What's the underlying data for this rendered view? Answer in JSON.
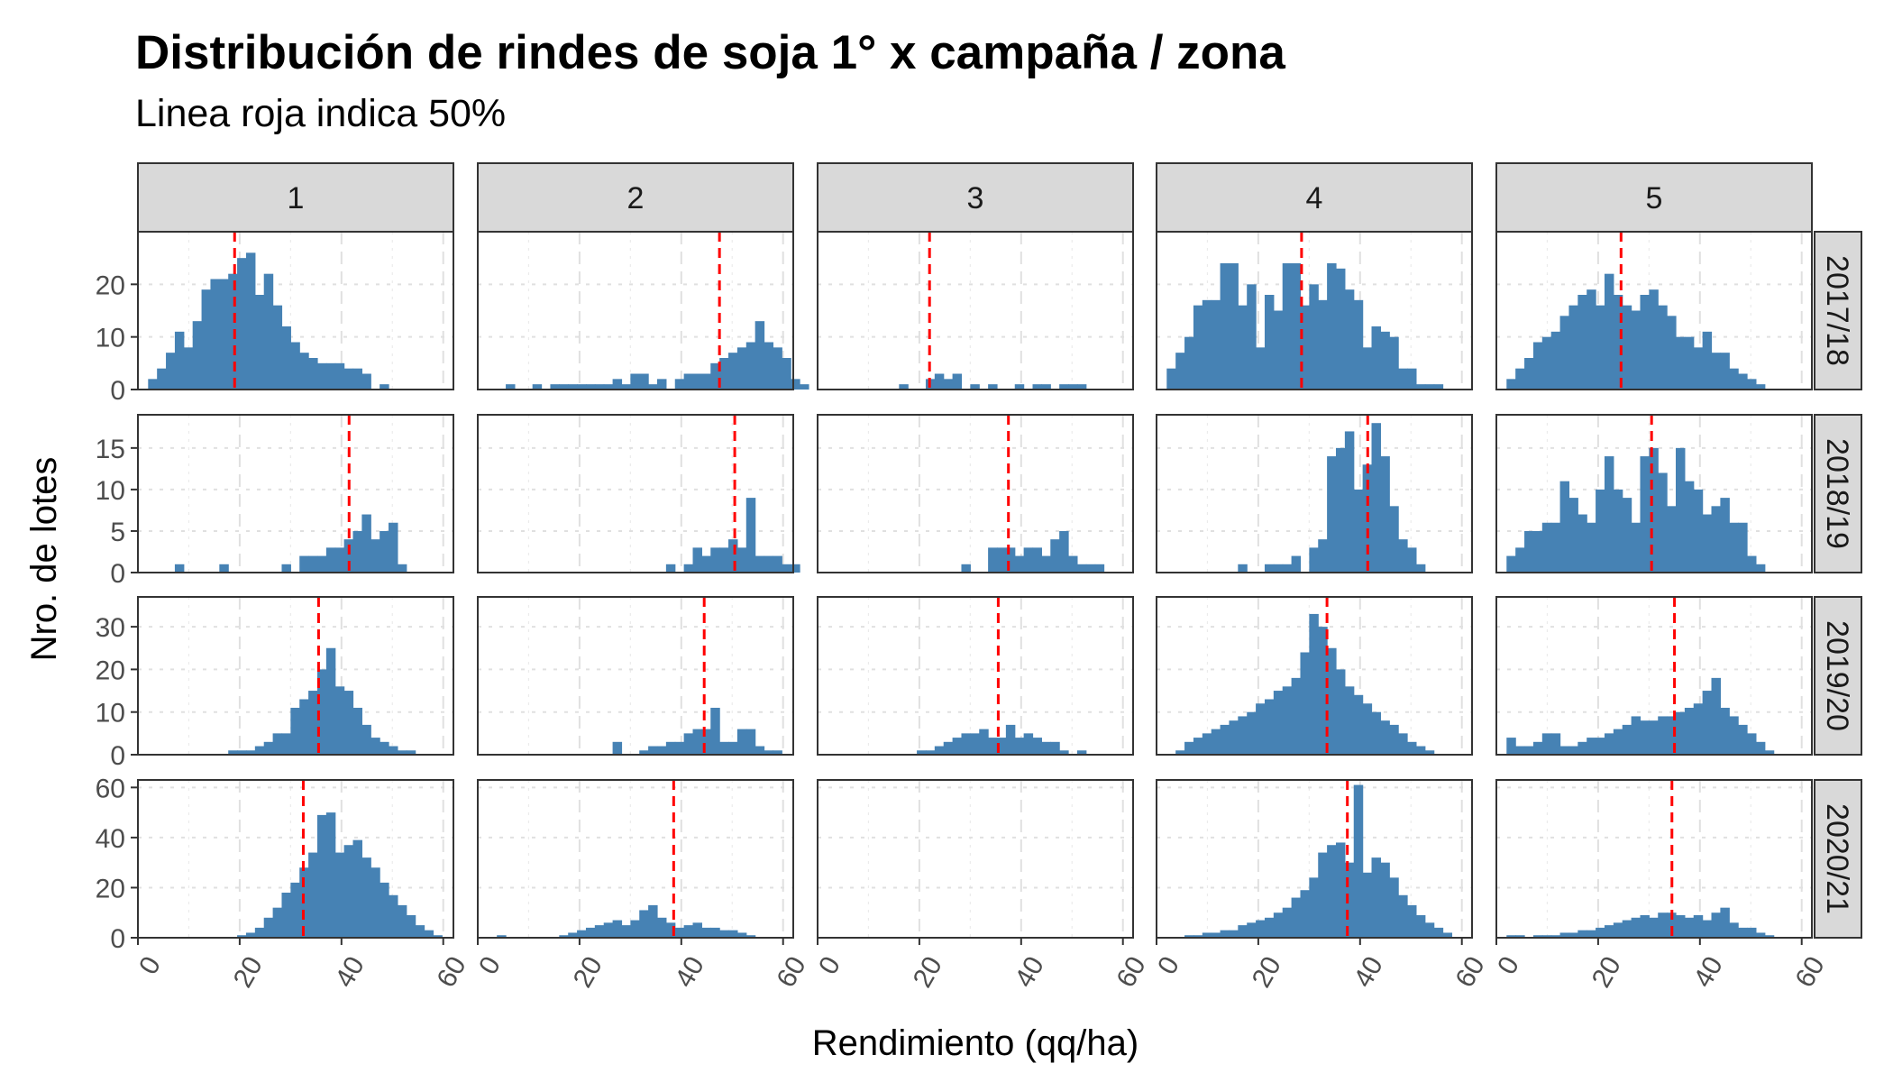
{
  "chart_data": {
    "type": "histogram",
    "title": "Distribución de rindes de soja 1° x campaña / zona",
    "subtitle": "Linea roja indica 50%",
    "xlabel": "Rendimiento (qq/ha)",
    "ylabel": "Nro. de lotes",
    "xlim": [
      0,
      62
    ],
    "x_ticks": [
      "0",
      "20",
      "40",
      "60"
    ],
    "bin_start": 2,
    "bin_width": 1.75,
    "columns": [
      "1",
      "2",
      "3",
      "4",
      "5"
    ],
    "rows": [
      {
        "label": "2017/18",
        "ylim": [
          0,
          30
        ],
        "y_ticks": [
          "0",
          "10",
          "20"
        ]
      },
      {
        "label": "2018/19",
        "ylim": [
          0,
          19
        ],
        "y_ticks": [
          "0",
          "5",
          "10",
          "15"
        ]
      },
      {
        "label": "2019/20",
        "ylim": [
          0,
          37
        ],
        "y_ticks": [
          "0",
          "10",
          "20",
          "30"
        ]
      },
      {
        "label": "2020/21",
        "ylim": [
          0,
          63
        ],
        "y_ticks": [
          "0",
          "20",
          "40",
          "60"
        ]
      }
    ],
    "bar_color": "#4682b4",
    "median_line_color": "#ff0000",
    "grid": true,
    "panels": [
      {
        "row": "2017/18",
        "column": "1",
        "median": 19,
        "counts": [
          2,
          4,
          7,
          11,
          8,
          13,
          19,
          21,
          21,
          22,
          25,
          26,
          18,
          22,
          16,
          12,
          9,
          7,
          6,
          5,
          5,
          5,
          4,
          4,
          3,
          0,
          1
        ]
      },
      {
        "row": "2017/18",
        "column": "2",
        "median": 47.5,
        "counts": [
          0,
          0,
          1,
          0,
          0,
          1,
          0,
          1,
          1,
          1,
          1,
          1,
          1,
          1,
          2,
          1,
          3,
          3,
          1,
          2,
          0,
          2,
          3,
          3,
          3,
          5,
          6,
          7,
          8,
          9,
          13,
          9,
          8,
          6,
          2,
          1
        ]
      },
      {
        "row": "2017/18",
        "column": "3",
        "median": 22,
        "counts": [
          0,
          0,
          0,
          0,
          0,
          0,
          0,
          0,
          1,
          0,
          0,
          2,
          3,
          2,
          3,
          0,
          1,
          0,
          1,
          0,
          0,
          1,
          0,
          1,
          1,
          0,
          1,
          1,
          1
        ]
      },
      {
        "row": "2017/18",
        "column": "4",
        "median": 28.5,
        "counts": [
          4,
          7,
          10,
          16,
          17,
          17,
          24,
          24,
          16,
          20,
          8,
          18,
          15,
          24,
          24,
          16,
          20,
          17,
          24,
          23,
          19,
          17,
          8,
          12,
          11,
          10,
          4,
          4,
          1,
          1,
          1
        ]
      },
      {
        "row": "2017/18",
        "column": "5",
        "median": 24.5,
        "counts": [
          2,
          4,
          6,
          9,
          10,
          11,
          14,
          16,
          18,
          19,
          16,
          22,
          18,
          16,
          15,
          18,
          19,
          16,
          14,
          10,
          10,
          8,
          11,
          7,
          7,
          4,
          3,
          2,
          1
        ]
      },
      {
        "row": "2018/19",
        "column": "1",
        "median": 41.5,
        "counts": [
          0,
          0,
          0,
          1,
          0,
          0,
          0,
          0,
          1,
          0,
          0,
          0,
          0,
          0,
          0,
          1,
          0,
          2,
          2,
          2,
          3,
          3,
          4,
          5,
          7,
          4,
          5,
          6,
          1
        ]
      },
      {
        "row": "2018/19",
        "column": "2",
        "median": 50.5,
        "counts": [
          0,
          0,
          0,
          0,
          0,
          0,
          0,
          0,
          0,
          0,
          0,
          0,
          0,
          0,
          0,
          0,
          0,
          0,
          0,
          0,
          1,
          0,
          1,
          3,
          2,
          3,
          3,
          4,
          3,
          9,
          2,
          2,
          2,
          1,
          1
        ]
      },
      {
        "row": "2018/19",
        "column": "3",
        "median": 37.5,
        "counts": [
          0,
          0,
          0,
          0,
          0,
          0,
          0,
          0,
          0,
          0,
          0,
          0,
          0,
          0,
          0,
          1,
          0,
          0,
          3,
          3,
          3,
          2,
          3,
          3,
          2,
          4,
          5,
          2,
          1,
          1,
          1
        ]
      },
      {
        "row": "2018/19",
        "column": "4",
        "median": 41.5,
        "counts": [
          0,
          0,
          0,
          0,
          0,
          0,
          0,
          0,
          1,
          0,
          0,
          1,
          1,
          1,
          2,
          0,
          3,
          4,
          14,
          15,
          17,
          10,
          13,
          18,
          14,
          8,
          4,
          3,
          1
        ]
      },
      {
        "row": "2018/19",
        "column": "5",
        "median": 30.5,
        "counts": [
          2,
          3,
          5,
          5,
          6,
          6,
          11,
          9,
          7,
          6,
          10,
          14,
          10,
          9,
          6,
          14,
          15,
          12,
          8,
          15,
          11,
          10,
          7,
          8,
          9,
          6,
          6,
          2,
          1
        ]
      },
      {
        "row": "2019/20",
        "column": "1",
        "median": 35.5,
        "counts": [
          0,
          0,
          0,
          0,
          0,
          0,
          0,
          0,
          0,
          1,
          1,
          1,
          2,
          3,
          5,
          5,
          11,
          13,
          15,
          20,
          25,
          16,
          15,
          11,
          7,
          4,
          3,
          2,
          1,
          1
        ]
      },
      {
        "row": "2019/20",
        "column": "2",
        "median": 44.5,
        "counts": [
          0,
          0,
          0,
          0,
          0,
          0,
          0,
          0,
          0,
          0,
          0,
          0,
          0,
          0,
          3,
          0,
          0,
          1,
          2,
          2,
          3,
          3,
          5,
          6,
          6,
          11,
          3,
          3,
          6,
          6,
          2,
          1,
          1
        ]
      },
      {
        "row": "2019/20",
        "column": "3",
        "median": 35.5,
        "counts": [
          0,
          0,
          0,
          0,
          0,
          0,
          0,
          0,
          0,
          0,
          1,
          1,
          2,
          3,
          4,
          5,
          5,
          6,
          4,
          4,
          7,
          4,
          5,
          4,
          3,
          3,
          1,
          0,
          1
        ]
      },
      {
        "row": "2019/20",
        "column": "4",
        "median": 33.5,
        "counts": [
          0,
          1,
          3,
          4,
          5,
          6,
          7,
          8,
          9,
          10,
          12,
          13,
          15,
          16,
          18,
          24,
          33,
          30,
          25,
          20,
          16,
          14,
          12,
          10,
          8,
          7,
          5,
          3,
          2,
          1
        ]
      },
      {
        "row": "2019/20",
        "column": "5",
        "median": 35,
        "counts": [
          4,
          2,
          2,
          3,
          5,
          5,
          2,
          2,
          3,
          4,
          4,
          5,
          6,
          7,
          9,
          8,
          8,
          9,
          9,
          10,
          11,
          12,
          15,
          18,
          11,
          9,
          7,
          5,
          3,
          1
        ]
      },
      {
        "row": "2020/21",
        "column": "1",
        "median": 32.5,
        "counts": [
          0,
          0,
          0,
          0,
          0,
          0,
          0,
          0,
          0,
          0,
          1,
          2,
          4,
          8,
          12,
          18,
          22,
          28,
          34,
          49,
          50,
          34,
          37,
          39,
          32,
          28,
          22,
          17,
          13,
          9,
          5,
          3,
          1
        ]
      },
      {
        "row": "2020/21",
        "column": "2",
        "median": 38.5,
        "counts": [
          0,
          1,
          0,
          0,
          0,
          0,
          0,
          0,
          1,
          2,
          3,
          4,
          5,
          6,
          7,
          5,
          7,
          11,
          13,
          8,
          6,
          4,
          5,
          6,
          4,
          4,
          3,
          3,
          2,
          1
        ]
      },
      {
        "row": "2020/21",
        "column": "3",
        "median": null,
        "counts": []
      },
      {
        "row": "2020/21",
        "column": "4",
        "median": 37.5,
        "counts": [
          0,
          0,
          1,
          1,
          2,
          2,
          3,
          3,
          5,
          6,
          7,
          8,
          10,
          12,
          16,
          19,
          24,
          34,
          37,
          38,
          30,
          61,
          26,
          32,
          30,
          24,
          17,
          13,
          9,
          6,
          4,
          2
        ]
      },
      {
        "row": "2020/21",
        "column": "5",
        "median": 34.5,
        "counts": [
          1,
          1,
          0,
          1,
          1,
          1,
          2,
          2,
          3,
          3,
          4,
          5,
          6,
          7,
          8,
          9,
          8,
          10,
          10,
          9,
          8,
          9,
          7,
          10,
          12,
          6,
          4,
          4,
          2,
          1
        ]
      }
    ]
  }
}
